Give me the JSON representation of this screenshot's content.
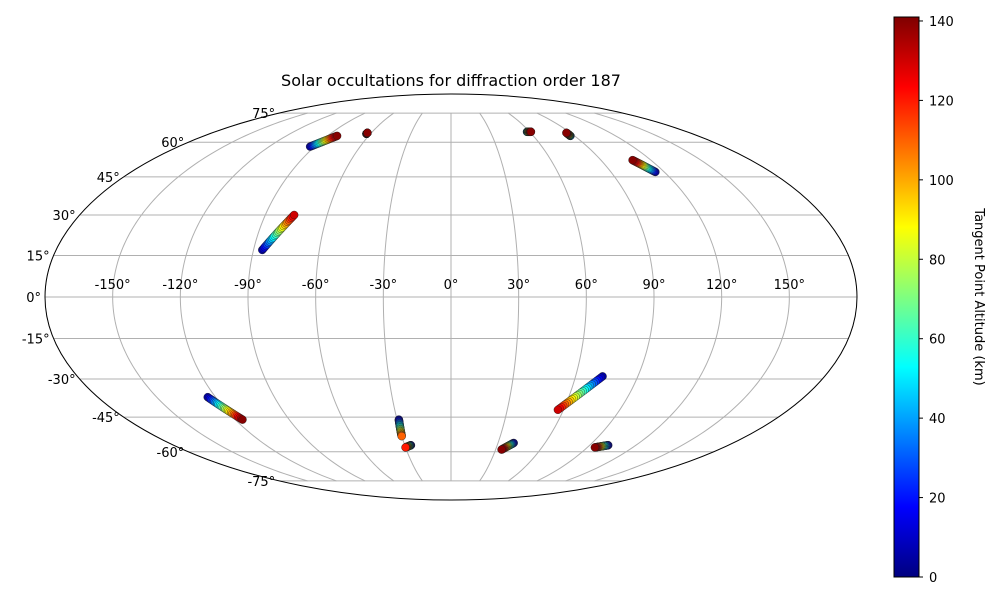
{
  "chart_data": {
    "type": "scatter",
    "title": "Solar occultations for diffraction order 187",
    "projection": "mollweide",
    "grid": true,
    "lon_ticks": [
      -150,
      -120,
      -90,
      -60,
      -30,
      0,
      30,
      60,
      90,
      120,
      150
    ],
    "lon_tick_labels": [
      "-150°",
      "-120°",
      "-90°",
      "-60°",
      "-30°",
      "0°",
      "30°",
      "60°",
      "90°",
      "120°",
      "150°"
    ],
    "lat_ticks": [
      -75,
      -60,
      -45,
      -30,
      -15,
      0,
      15,
      30,
      45,
      60,
      75
    ],
    "lat_tick_labels": [
      "-75°",
      "-60°",
      "-45°",
      "-30°",
      "-15°",
      "0°",
      "15°",
      "30°",
      "45°",
      "60°",
      "75°"
    ],
    "colorbar": {
      "label": "Tangent Point Altitude (km)",
      "colormap": "jet",
      "range": [
        0,
        141
      ],
      "ticks": [
        0,
        20,
        40,
        60,
        80,
        100,
        120,
        140
      ],
      "tick_labels": [
        "0",
        "20",
        "40",
        "60",
        "80",
        "100",
        "120",
        "140"
      ]
    },
    "tracks": [
      {
        "lon_start": -93,
        "lat_start": 58,
        "lon_end": -83,
        "lat_end": 63,
        "alt_start": 5,
        "alt_end": 140
      },
      {
        "lon_start": -63,
        "lat_start": 64,
        "lon_end": -63,
        "lat_end": 64.5,
        "alt_start": 135,
        "alt_end": 140
      },
      {
        "lon_start": -86,
        "lat_start": 17,
        "lon_end": -76,
        "lat_end": 30,
        "alt_start": 5,
        "alt_end": 130
      },
      {
        "lon_start": 58,
        "lat_start": 65,
        "lon_end": 61,
        "lat_end": 65,
        "alt_start": 30,
        "alt_end": 140
      },
      {
        "lon_start": 87,
        "lat_start": 63,
        "lon_end": 87,
        "lat_end": 64.5,
        "alt_start": 30,
        "alt_end": 140
      },
      {
        "lon_start": 115,
        "lat_start": 47,
        "lon_end": 109,
        "lat_end": 52,
        "alt_start": 5,
        "alt_end": 140
      },
      {
        "lon_start": -124,
        "lat_start": -37,
        "lon_end": -116,
        "lat_end": -46,
        "alt_start": 5,
        "alt_end": 140
      },
      {
        "lon_start": -29,
        "lat_start": -46,
        "lon_end": -30,
        "lat_end": -53,
        "alt_start": 5,
        "alt_end": 110
      },
      {
        "lon_start": -26,
        "lat_start": -57,
        "lon_end": -30,
        "lat_end": -58,
        "alt_start": 5,
        "alt_end": 120
      },
      {
        "lon_start": 40,
        "lat_start": -56,
        "lon_end": 34,
        "lat_end": -59,
        "alt_start": 5,
        "alt_end": 140
      },
      {
        "lon_start": 73,
        "lat_start": -29,
        "lon_end": 57,
        "lat_end": -42,
        "alt_start": 5,
        "alt_end": 130
      },
      {
        "lon_start": 102,
        "lat_start": -57,
        "lon_end": 95,
        "lat_end": -58,
        "alt_start": 5,
        "alt_end": 140
      }
    ]
  }
}
